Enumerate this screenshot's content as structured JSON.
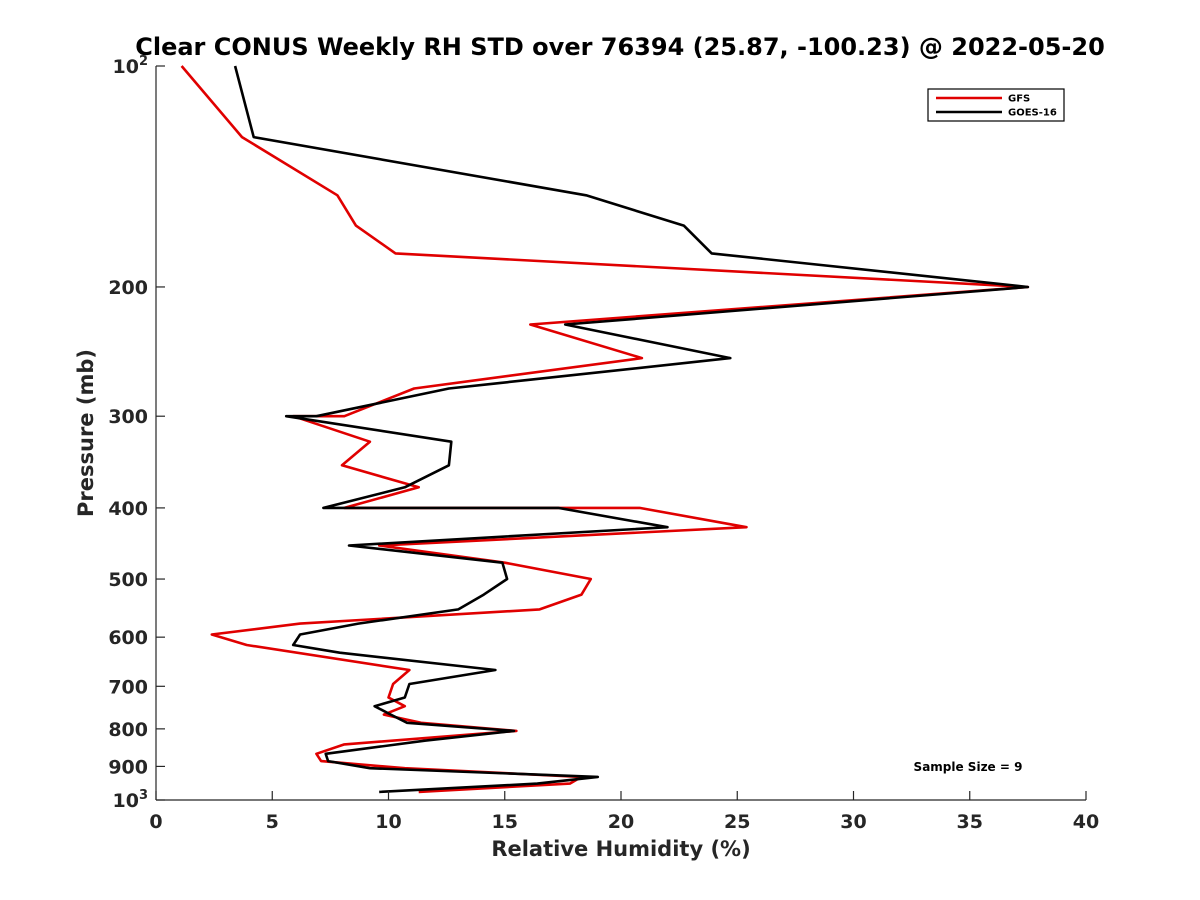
{
  "chart_data": {
    "type": "line",
    "title": "Clear CONUS Weekly RH STD over 76394 (25.87, -100.23) @ 2022-05-20",
    "xlabel": "Relative Humidity (%)",
    "ylabel": "Pressure (mb)",
    "xlim": [
      0,
      40
    ],
    "ylim": [
      100,
      1000
    ],
    "y_scale": "log",
    "y_reversed": true,
    "x_ticks": [
      0,
      5,
      10,
      15,
      20,
      25,
      30,
      35,
      40
    ],
    "x_tick_labels": [
      "0",
      "5",
      "10",
      "15",
      "20",
      "25",
      "30",
      "35",
      "40"
    ],
    "y_ticks": [
      100,
      200,
      300,
      400,
      500,
      600,
      700,
      800,
      900,
      1000
    ],
    "y_tick_labels": [
      {
        "base": "10",
        "sup": "2"
      },
      {
        "base": "200",
        "sup": ""
      },
      {
        "base": "300",
        "sup": ""
      },
      {
        "base": "400",
        "sup": ""
      },
      {
        "base": "500",
        "sup": ""
      },
      {
        "base": "600",
        "sup": ""
      },
      {
        "base": "700",
        "sup": ""
      },
      {
        "base": "800",
        "sup": ""
      },
      {
        "base": "900",
        "sup": ""
      },
      {
        "base": "10",
        "sup": "3"
      }
    ],
    "legend_position": "top-right",
    "grid": false,
    "annotation": "Sample Size = 9",
    "series": [
      {
        "name": "GFS",
        "color": "#e00000",
        "points": [
          [
            1.1,
            100
          ],
          [
            3.7,
            125
          ],
          [
            7.8,
            150
          ],
          [
            8.6,
            165
          ],
          [
            10.3,
            180
          ],
          [
            37.5,
            200
          ],
          [
            16.1,
            225
          ],
          [
            20.9,
            250
          ],
          [
            11.1,
            275
          ],
          [
            8.1,
            300
          ],
          [
            5.9,
            300
          ],
          [
            9.2,
            325
          ],
          [
            8.0,
            350
          ],
          [
            11.3,
            375
          ],
          [
            8.1,
            400
          ],
          [
            20.8,
            400
          ],
          [
            25.4,
            425
          ],
          [
            9.6,
            450
          ],
          [
            15.0,
            475
          ],
          [
            18.7,
            500
          ],
          [
            18.3,
            525
          ],
          [
            16.5,
            550
          ],
          [
            6.2,
            575
          ],
          [
            2.4,
            595
          ],
          [
            3.9,
            615
          ],
          [
            10.9,
            665
          ],
          [
            10.2,
            695
          ],
          [
            10.0,
            725
          ],
          [
            10.7,
            745
          ],
          [
            9.8,
            765
          ],
          [
            11.4,
            785
          ],
          [
            15.5,
            805
          ],
          [
            8.1,
            840
          ],
          [
            6.9,
            865
          ],
          [
            7.1,
            885
          ],
          [
            10.7,
            905
          ],
          [
            18.3,
            930
          ],
          [
            17.8,
            950
          ],
          [
            11.3,
            975
          ]
        ]
      },
      {
        "name": "GOES-16",
        "color": "#000000",
        "points": [
          [
            3.4,
            100
          ],
          [
            4.2,
            125
          ],
          [
            18.5,
            150
          ],
          [
            22.7,
            165
          ],
          [
            23.9,
            180
          ],
          [
            37.5,
            200
          ],
          [
            17.6,
            225
          ],
          [
            24.7,
            250
          ],
          [
            12.6,
            275
          ],
          [
            6.9,
            300
          ],
          [
            5.6,
            300
          ],
          [
            12.7,
            325
          ],
          [
            12.6,
            350
          ],
          [
            10.7,
            375
          ],
          [
            7.2,
            400
          ],
          [
            17.3,
            400
          ],
          [
            22.0,
            425
          ],
          [
            8.3,
            450
          ],
          [
            14.9,
            475
          ],
          [
            15.1,
            500
          ],
          [
            14.1,
            525
          ],
          [
            13.0,
            550
          ],
          [
            8.7,
            575
          ],
          [
            6.2,
            595
          ],
          [
            5.9,
            615
          ],
          [
            7.9,
            630
          ],
          [
            14.6,
            665
          ],
          [
            10.9,
            695
          ],
          [
            10.7,
            725
          ],
          [
            9.4,
            745
          ],
          [
            10.1,
            765
          ],
          [
            10.8,
            785
          ],
          [
            15.4,
            805
          ],
          [
            11.6,
            830
          ],
          [
            7.3,
            865
          ],
          [
            7.4,
            885
          ],
          [
            9.2,
            905
          ],
          [
            19.0,
            930
          ],
          [
            16.4,
            950
          ],
          [
            9.6,
            975
          ]
        ]
      }
    ]
  }
}
